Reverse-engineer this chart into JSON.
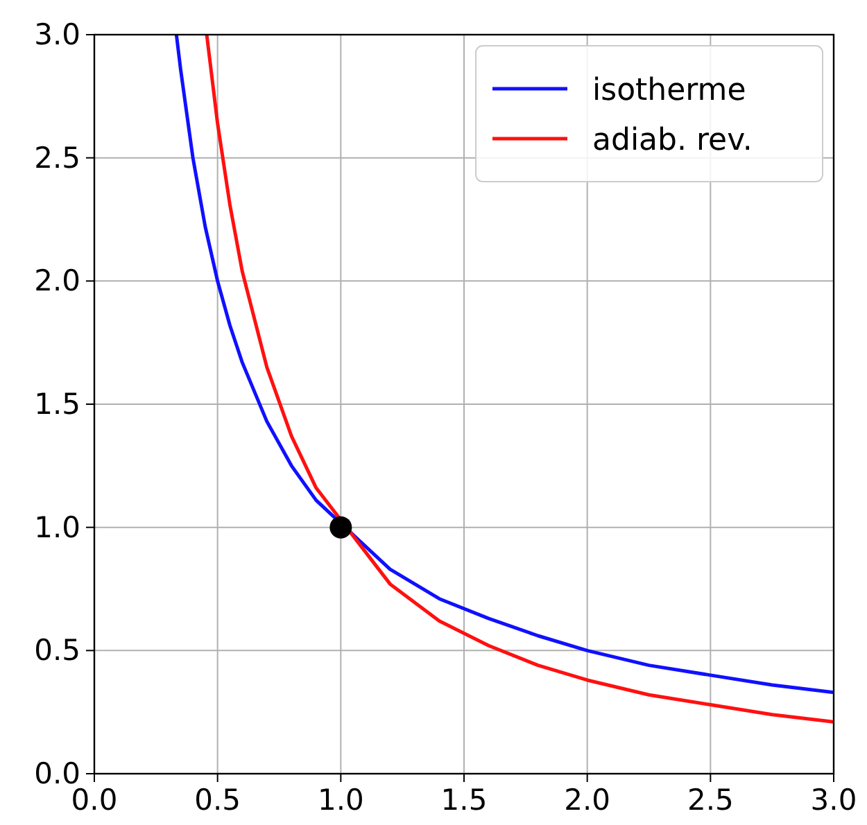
{
  "chart_data": {
    "type": "line",
    "xlim": [
      0,
      3
    ],
    "ylim": [
      0,
      3
    ],
    "xticks": [
      {
        "value": 0,
        "label": "0.0"
      },
      {
        "value": 0.5,
        "label": "0.5"
      },
      {
        "value": 1,
        "label": "1.0"
      },
      {
        "value": 1.5,
        "label": "1.5"
      },
      {
        "value": 2,
        "label": "2.0"
      },
      {
        "value": 2.5,
        "label": "2.5"
      },
      {
        "value": 3,
        "label": "3.0"
      }
    ],
    "yticks": [
      {
        "value": 0,
        "label": "0.0"
      },
      {
        "value": 0.5,
        "label": "0.5"
      },
      {
        "value": 1,
        "label": "1.0"
      },
      {
        "value": 1.5,
        "label": "1.5"
      },
      {
        "value": 2,
        "label": "2.0"
      },
      {
        "value": 2.5,
        "label": "2.5"
      },
      {
        "value": 3,
        "label": "3.0"
      }
    ],
    "grid": true,
    "legend": "top right",
    "line_style": "solid",
    "series": [
      {
        "name": "isotherme",
        "color": "#1010ff",
        "x": [
          0.333,
          0.35,
          0.4,
          0.45,
          0.5,
          0.55,
          0.6,
          0.7,
          0.8,
          0.9,
          1.2,
          1.4,
          1.6,
          1.8,
          2.0,
          2.25,
          2.5,
          2.75,
          3.0
        ],
        "values": [
          3.0,
          2.86,
          2.5,
          2.22,
          2.0,
          1.82,
          1.67,
          1.43,
          1.25,
          1.11,
          0.83,
          0.71,
          0.63,
          0.56,
          0.5,
          0.44,
          0.4,
          0.36,
          0.33
        ]
      },
      {
        "name": "adiab. rev.",
        "color": "#ff1010",
        "x": [
          0.456,
          0.5,
          0.55,
          0.6,
          0.7,
          0.8,
          0.9,
          1.2,
          1.4,
          1.6,
          1.8,
          2.0,
          2.25,
          2.5,
          2.75,
          3.0
        ],
        "values": [
          3.0,
          2.64,
          2.31,
          2.04,
          1.65,
          1.37,
          1.16,
          0.77,
          0.62,
          0.52,
          0.44,
          0.38,
          0.32,
          0.28,
          0.24,
          0.21
        ]
      },
      {
        "type": "scatter",
        "color": "#000000",
        "marker": "circle",
        "x": [
          1.0
        ],
        "values": [
          1.0
        ]
      }
    ]
  }
}
